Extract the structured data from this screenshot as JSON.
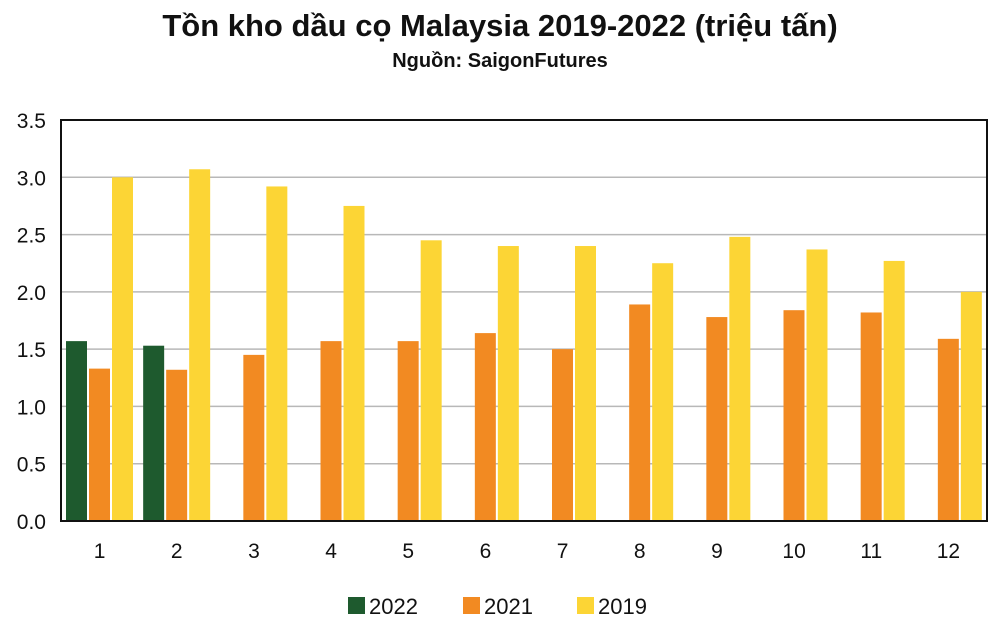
{
  "chart_data": {
    "type": "bar",
    "title": "Tồn kho dầu cọ Malaysia 2019-2022 (triệu tấn)",
    "subtitle": "Nguồn: SaigonFutures",
    "categories": [
      "1",
      "2",
      "3",
      "4",
      "5",
      "6",
      "7",
      "8",
      "9",
      "10",
      "11",
      "12"
    ],
    "series": [
      {
        "name": "2022",
        "color": "#1e5a2e",
        "values": [
          1.57,
          1.53,
          null,
          null,
          null,
          null,
          null,
          null,
          null,
          null,
          null,
          null
        ]
      },
      {
        "name": "2021",
        "color": "#f28a22",
        "values": [
          1.33,
          1.32,
          1.45,
          1.57,
          1.57,
          1.64,
          1.5,
          1.89,
          1.78,
          1.84,
          1.82,
          1.59
        ]
      },
      {
        "name": "2019",
        "color": "#fcd535",
        "values": [
          3.0,
          3.07,
          2.92,
          2.75,
          2.45,
          2.4,
          2.4,
          2.25,
          2.48,
          2.37,
          2.27,
          2.0
        ]
      }
    ],
    "ylim": [
      0,
      3.5
    ],
    "yticks": [
      "0.0",
      "0.5",
      "1.0",
      "1.5",
      "2.0",
      "2.5",
      "3.0",
      "3.5"
    ],
    "grid": true,
    "legend_position": "bottom-center",
    "xlabel": "",
    "ylabel": ""
  }
}
